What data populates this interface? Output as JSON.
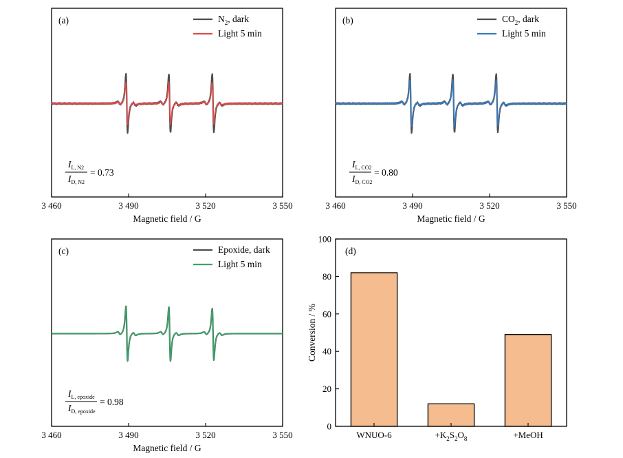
{
  "chart_data": [
    {
      "panel": "(a)",
      "type": "line",
      "xlabel": "Magnetic field / G",
      "xlim": [
        3460,
        3550
      ],
      "xticks": [
        "3 460",
        "3 490",
        "3 520",
        "3 550"
      ],
      "xtick_values": [
        3460,
        3490,
        3520,
        3550
      ],
      "legend_position": "top-right",
      "series": [
        {
          "name_main": "N",
          "name_sub": "2",
          "name_rest": ", dark",
          "color": "#4d4d4d",
          "peaks": [
            {
              "center": 3489.3,
              "pos": 1.0,
              "neg": 0.98
            },
            {
              "center": 3506.0,
              "pos": 1.0,
              "neg": 0.98
            },
            {
              "center": 3522.9,
              "pos": 1.0,
              "neg": 0.97
            }
          ]
        },
        {
          "name": "Light 5 min",
          "color": "#d94b4b",
          "peaks": [
            {
              "center": 3489.3,
              "pos": 0.73,
              "neg": 0.72
            },
            {
              "center": 3506.0,
              "pos": 0.73,
              "neg": 0.72
            },
            {
              "center": 3522.9,
              "pos": 0.72,
              "neg": 0.71
            }
          ]
        }
      ],
      "ratio": {
        "num": "I",
        "num_sub": "L, N2",
        "den": "I",
        "den_sub": "D, N2",
        "value": "= 0.73"
      }
    },
    {
      "panel": "(b)",
      "type": "line",
      "xlabel": "Magnetic field / G",
      "xlim": [
        3460,
        3550
      ],
      "xticks": [
        "3 460",
        "3 490",
        "3 520",
        "3 550"
      ],
      "xtick_values": [
        3460,
        3490,
        3520,
        3550
      ],
      "legend_position": "top-right",
      "series": [
        {
          "name_main": "CO",
          "name_sub": "2",
          "name_rest": ", dark",
          "color": "#4d4d4d",
          "peaks": [
            {
              "center": 3489.3,
              "pos": 1.0,
              "neg": 0.98
            },
            {
              "center": 3506.0,
              "pos": 1.0,
              "neg": 0.98
            },
            {
              "center": 3522.9,
              "pos": 1.0,
              "neg": 0.97
            }
          ]
        },
        {
          "name": "Light 5 min",
          "color": "#3b78b8",
          "peaks": [
            {
              "center": 3489.3,
              "pos": 0.8,
              "neg": 0.78
            },
            {
              "center": 3506.0,
              "pos": 0.8,
              "neg": 0.78
            },
            {
              "center": 3522.9,
              "pos": 0.8,
              "neg": 0.77
            }
          ]
        }
      ],
      "ratio": {
        "num": "I",
        "num_sub": "L, CO2",
        "den": "I",
        "den_sub": "D, CO2",
        "value": "= 0.80"
      }
    },
    {
      "panel": "(c)",
      "type": "line",
      "xlabel": "Magnetic field / G",
      "xlim": [
        3460,
        3550
      ],
      "xticks": [
        "3 460",
        "3 490",
        "3 520",
        "3 550"
      ],
      "xtick_values": [
        3460,
        3490,
        3520,
        3550
      ],
      "legend_position": "top-right",
      "series": [
        {
          "name": "Epoxide, dark",
          "color": "#4d4d4d",
          "peaks": [
            {
              "center": 3489.3,
              "pos": 0.93,
              "neg": 0.93
            },
            {
              "center": 3506.0,
              "pos": 0.9,
              "neg": 0.93
            },
            {
              "center": 3522.9,
              "pos": 0.85,
              "neg": 0.9
            }
          ]
        },
        {
          "name": "Light 5 min",
          "color": "#3aa36a",
          "peaks": [
            {
              "center": 3489.3,
              "pos": 0.92,
              "neg": 0.92
            },
            {
              "center": 3506.0,
              "pos": 0.89,
              "neg": 0.92
            },
            {
              "center": 3522.9,
              "pos": 0.84,
              "neg": 0.89
            }
          ]
        }
      ],
      "ratio": {
        "num": "I",
        "num_sub": "L, epoxide",
        "den": "I",
        "den_sub": "D, epoxide",
        "value": "= 0.98"
      }
    },
    {
      "panel": "(d)",
      "type": "bar",
      "ylabel": "Conversion / %",
      "ylim": [
        0,
        100
      ],
      "yticks": [
        0,
        20,
        40,
        60,
        80,
        100
      ],
      "categories": [
        "WNUO-6",
        "+K2S2O8",
        "+MeOH"
      ],
      "category_label_parts": [
        [
          {
            "t": "WNUO-6"
          }
        ],
        [
          {
            "t": "+K"
          },
          {
            "t": "2",
            "sub": true
          },
          {
            "t": "S"
          },
          {
            "t": "2",
            "sub": true
          },
          {
            "t": "O"
          },
          {
            "t": "8",
            "sub": true
          }
        ],
        [
          {
            "t": "+MeOH"
          }
        ]
      ],
      "values": [
        82,
        12,
        49
      ],
      "bar_color": "#f5bc8f"
    }
  ]
}
